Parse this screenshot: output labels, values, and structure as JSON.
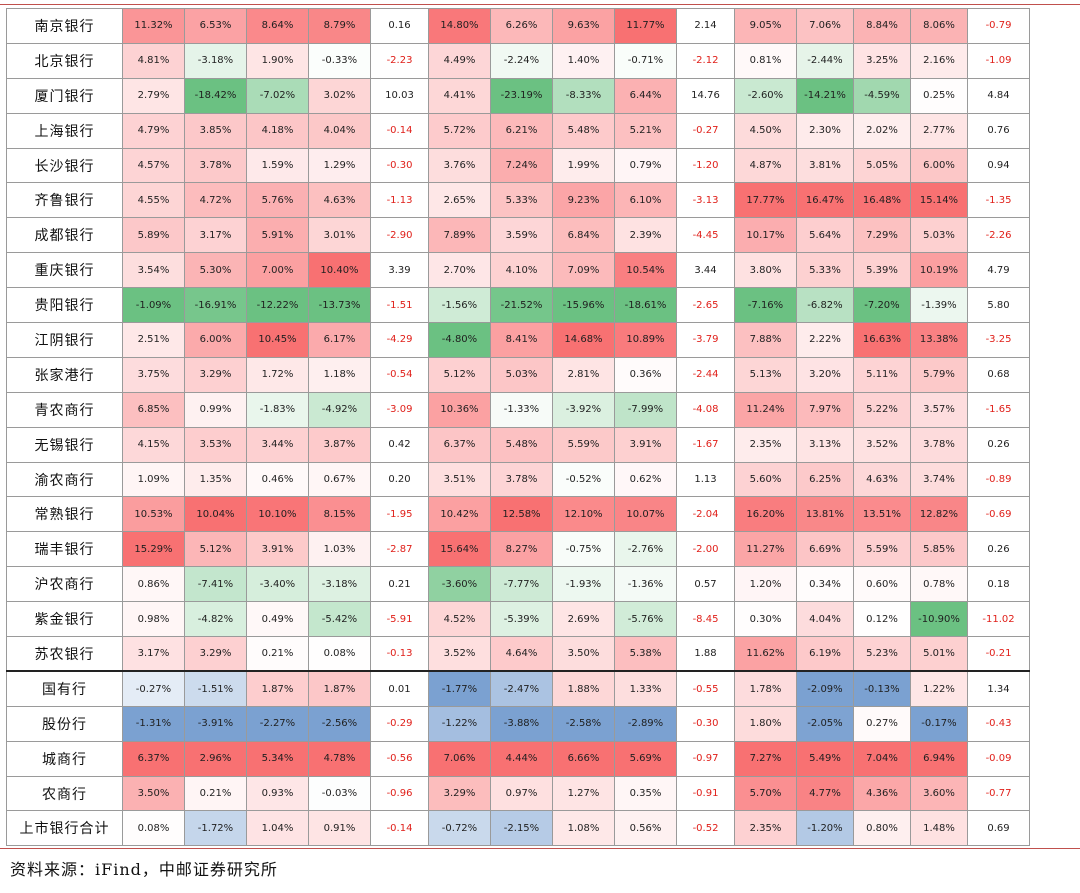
{
  "table": {
    "rows": [
      {
        "name": "南京银行",
        "cells": [
          "11.32%",
          "6.53%",
          "8.64%",
          "8.79%",
          "0.16",
          "14.80%",
          "6.26%",
          "9.63%",
          "11.77%",
          "2.14",
          "9.05%",
          "7.06%",
          "8.84%",
          "8.06%",
          "-0.79"
        ]
      },
      {
        "name": "北京银行",
        "cells": [
          "4.81%",
          "-3.18%",
          "1.90%",
          "-0.33%",
          "-2.23",
          "4.49%",
          "-2.24%",
          "1.40%",
          "-0.71%",
          "-2.12",
          "0.81%",
          "-2.44%",
          "3.25%",
          "2.16%",
          "-1.09"
        ]
      },
      {
        "name": "厦门银行",
        "cells": [
          "2.79%",
          "-18.42%",
          "-7.02%",
          "3.02%",
          "10.03",
          "4.41%",
          "-23.19%",
          "-8.33%",
          "6.44%",
          "14.76",
          "-2.60%",
          "-14.21%",
          "-4.59%",
          "0.25%",
          "4.84"
        ]
      },
      {
        "name": "上海银行",
        "cells": [
          "4.79%",
          "3.85%",
          "4.18%",
          "4.04%",
          "-0.14",
          "5.72%",
          "6.21%",
          "5.48%",
          "5.21%",
          "-0.27",
          "4.50%",
          "2.30%",
          "2.02%",
          "2.77%",
          "0.76"
        ]
      },
      {
        "name": "长沙银行",
        "cells": [
          "4.57%",
          "3.78%",
          "1.59%",
          "1.29%",
          "-0.30",
          "3.76%",
          "7.24%",
          "1.99%",
          "0.79%",
          "-1.20",
          "4.87%",
          "3.81%",
          "5.05%",
          "6.00%",
          "0.94"
        ]
      },
      {
        "name": "齐鲁银行",
        "cells": [
          "4.55%",
          "4.72%",
          "5.76%",
          "4.63%",
          "-1.13",
          "2.65%",
          "5.33%",
          "9.23%",
          "6.10%",
          "-3.13",
          "17.77%",
          "16.47%",
          "16.48%",
          "15.14%",
          "-1.35"
        ]
      },
      {
        "name": "成都银行",
        "cells": [
          "5.89%",
          "3.17%",
          "5.91%",
          "3.01%",
          "-2.90",
          "7.89%",
          "3.59%",
          "6.84%",
          "2.39%",
          "-4.45",
          "10.17%",
          "5.64%",
          "7.29%",
          "5.03%",
          "-2.26"
        ]
      },
      {
        "name": "重庆银行",
        "cells": [
          "3.54%",
          "5.30%",
          "7.00%",
          "10.40%",
          "3.39",
          "2.70%",
          "4.10%",
          "7.09%",
          "10.54%",
          "3.44",
          "3.80%",
          "5.33%",
          "5.39%",
          "10.19%",
          "4.79"
        ]
      },
      {
        "name": "贵阳银行",
        "cells": [
          "-1.09%",
          "-16.91%",
          "-12.22%",
          "-13.73%",
          "-1.51",
          "-1.56%",
          "-21.52%",
          "-15.96%",
          "-18.61%",
          "-2.65",
          "-7.16%",
          "-6.82%",
          "-7.20%",
          "-1.39%",
          "5.80"
        ]
      },
      {
        "name": "江阴银行",
        "cells": [
          "2.51%",
          "6.00%",
          "10.45%",
          "6.17%",
          "-4.29",
          "-4.80%",
          "8.41%",
          "14.68%",
          "10.89%",
          "-3.79",
          "7.88%",
          "2.22%",
          "16.63%",
          "13.38%",
          "-3.25"
        ]
      },
      {
        "name": "张家港行",
        "cells": [
          "3.75%",
          "3.29%",
          "1.72%",
          "1.18%",
          "-0.54",
          "5.12%",
          "5.03%",
          "2.81%",
          "0.36%",
          "-2.44",
          "5.13%",
          "3.20%",
          "5.11%",
          "5.79%",
          "0.68"
        ]
      },
      {
        "name": "青农商行",
        "cells": [
          "6.85%",
          "0.99%",
          "-1.83%",
          "-4.92%",
          "-3.09",
          "10.36%",
          "-1.33%",
          "-3.92%",
          "-7.99%",
          "-4.08",
          "11.24%",
          "7.97%",
          "5.22%",
          "3.57%",
          "-1.65"
        ]
      },
      {
        "name": "无锡银行",
        "cells": [
          "4.15%",
          "3.53%",
          "3.44%",
          "3.87%",
          "0.42",
          "6.37%",
          "5.48%",
          "5.59%",
          "3.91%",
          "-1.67",
          "2.35%",
          "3.13%",
          "3.52%",
          "3.78%",
          "0.26"
        ]
      },
      {
        "name": "渝农商行",
        "cells": [
          "1.09%",
          "1.35%",
          "0.46%",
          "0.67%",
          "0.20",
          "3.51%",
          "3.78%",
          "-0.52%",
          "0.62%",
          "1.13",
          "5.60%",
          "6.25%",
          "4.63%",
          "3.74%",
          "-0.89"
        ]
      },
      {
        "name": "常熟银行",
        "cells": [
          "10.53%",
          "10.04%",
          "10.10%",
          "8.15%",
          "-1.95",
          "10.42%",
          "12.58%",
          "12.10%",
          "10.07%",
          "-2.04",
          "16.20%",
          "13.81%",
          "13.51%",
          "12.82%",
          "-0.69"
        ]
      },
      {
        "name": "瑞丰银行",
        "cells": [
          "15.29%",
          "5.12%",
          "3.91%",
          "1.03%",
          "-2.87",
          "15.64%",
          "8.27%",
          "-0.75%",
          "-2.76%",
          "-2.00",
          "11.27%",
          "6.69%",
          "5.59%",
          "5.85%",
          "0.26"
        ]
      },
      {
        "name": "沪农商行",
        "cells": [
          "0.86%",
          "-7.41%",
          "-3.40%",
          "-3.18%",
          "0.21",
          "-3.60%",
          "-7.77%",
          "-1.93%",
          "-1.36%",
          "0.57",
          "1.20%",
          "0.34%",
          "0.60%",
          "0.78%",
          "0.18"
        ]
      },
      {
        "name": "紫金银行",
        "cells": [
          "0.98%",
          "-4.82%",
          "0.49%",
          "-5.42%",
          "-5.91",
          "4.52%",
          "-5.39%",
          "2.69%",
          "-5.76%",
          "-8.45",
          "0.30%",
          "4.04%",
          "0.12%",
          "-10.90%",
          "-11.02"
        ]
      },
      {
        "name": "苏农银行",
        "cells": [
          "3.17%",
          "3.29%",
          "0.21%",
          "0.08%",
          "-0.13",
          "3.52%",
          "4.64%",
          "3.50%",
          "5.38%",
          "1.88",
          "11.62%",
          "6.19%",
          "5.23%",
          "5.01%",
          "-0.21"
        ]
      },
      {
        "name": "国有行",
        "cells": [
          "-0.27%",
          "-1.51%",
          "1.87%",
          "1.87%",
          "0.01",
          "-1.77%",
          "-2.47%",
          "1.88%",
          "1.33%",
          "-0.55",
          "1.78%",
          "-2.09%",
          "-0.13%",
          "1.22%",
          "1.34"
        ]
      },
      {
        "name": "股份行",
        "cells": [
          "-1.31%",
          "-3.91%",
          "-2.27%",
          "-2.56%",
          "-0.29",
          "-1.22%",
          "-3.88%",
          "-2.58%",
          "-2.89%",
          "-0.30",
          "1.80%",
          "-2.05%",
          "0.27%",
          "-0.17%",
          "-0.43"
        ]
      },
      {
        "name": "城商行",
        "cells": [
          "6.37%",
          "2.96%",
          "5.34%",
          "4.78%",
          "-0.56",
          "7.06%",
          "4.44%",
          "6.66%",
          "5.69%",
          "-0.97",
          "7.27%",
          "5.49%",
          "7.04%",
          "6.94%",
          "-0.09"
        ]
      },
      {
        "name": "农商行",
        "cells": [
          "3.50%",
          "0.21%",
          "0.93%",
          "-0.03%",
          "-0.96",
          "3.29%",
          "0.97%",
          "1.27%",
          "0.35%",
          "-0.91",
          "5.70%",
          "4.77%",
          "4.36%",
          "3.60%",
          "-0.77"
        ]
      },
      {
        "name": "上市银行合计",
        "cells": [
          "0.08%",
          "-1.72%",
          "1.04%",
          "0.91%",
          "-0.14",
          "-0.72%",
          "-2.15%",
          "1.08%",
          "0.56%",
          "-0.52",
          "2.35%",
          "-1.20%",
          "0.80%",
          "1.48%",
          "0.69"
        ]
      }
    ]
  },
  "source_note": "资料来源：iFind，中邮证券研究所",
  "colors": {
    "positive": "#f8696b",
    "negative_bank": "#63be7b",
    "negative_aggregate": "#5a8ac6",
    "neutral": "#ffffff",
    "negative_text": "#e0201a",
    "rule_line": "#c0504d"
  }
}
